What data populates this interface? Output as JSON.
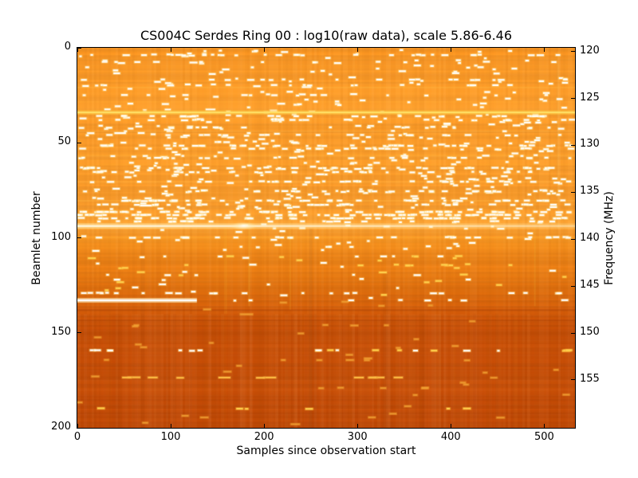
{
  "figure": {
    "title": "CS004C Serdes Ring 00 : log10(raw data), scale 5.86-6.46",
    "xlabel": "Samples since observation start",
    "ylabel_left": "Beamlet number",
    "ylabel_right": "Frequency (MHz)",
    "background": "#ffffff",
    "text_color": "#000000"
  },
  "chart_data": {
    "type": "heatmap",
    "title": "CS004C Serdes Ring 00 : log10(raw data), scale 5.86-6.46",
    "xlabel": "Samples since observation start",
    "ylabel": "Beamlet number",
    "ylabel_right": "Frequency (MHz)",
    "station": "CS004C",
    "ring": "00",
    "scale_min": 5.86,
    "scale_max": 6.46,
    "x_range": [
      0,
      533
    ],
    "y_range": [
      0,
      200
    ],
    "y_inverted": true,
    "xticks": [
      0,
      100,
      200,
      300,
      400,
      500
    ],
    "yticks": [
      0,
      50,
      100,
      150,
      200
    ],
    "right_ticks": [
      120,
      125,
      130,
      135,
      140,
      145,
      150,
      155
    ],
    "freq_top_mhz": 119.6,
    "freq_bottom_mhz": 160.1,
    "grid": false,
    "colormap": "hot-orange",
    "bg_stops": [
      {
        "b": 0,
        "c": "#F79320"
      },
      {
        "b": 6,
        "c": "#FA9826"
      },
      {
        "b": 20,
        "c": "#FA9A28"
      },
      {
        "b": 33,
        "c": "#FC9F2E"
      },
      {
        "b": 40,
        "c": "#FA9A28"
      },
      {
        "b": 55,
        "c": "#FB9D2B"
      },
      {
        "b": 70,
        "c": "#FA9B2A"
      },
      {
        "b": 85,
        "c": "#FA9C2C"
      },
      {
        "b": 93,
        "c": "#FDA535"
      },
      {
        "b": 97,
        "c": "#F89A2B"
      },
      {
        "b": 102,
        "c": "#F5921F"
      },
      {
        "b": 110,
        "c": "#EF8518"
      },
      {
        "b": 120,
        "c": "#E77A12"
      },
      {
        "b": 130,
        "c": "#DE6C0E"
      },
      {
        "b": 137,
        "c": "#D5600C"
      },
      {
        "b": 143,
        "c": "#CB5409"
      },
      {
        "b": 149,
        "c": "#C64F08"
      },
      {
        "b": 155,
        "c": "#C95109"
      },
      {
        "b": 162,
        "c": "#C74F09"
      },
      {
        "b": 170,
        "c": "#C54E08"
      },
      {
        "b": 178,
        "c": "#C8500A"
      },
      {
        "b": 186,
        "c": "#C44C08"
      },
      {
        "b": 194,
        "c": "#C24B08"
      },
      {
        "b": 200,
        "c": "#BF4907"
      }
    ],
    "lines": [
      {
        "b": 21,
        "c": "#FFBE4E",
        "t": 1.6,
        "a": 0.35
      },
      {
        "b": 34,
        "c": "#FFE066",
        "t": 2.3,
        "a": 1,
        "gc": "#FFC33C",
        "gt": 6,
        "ga": 0.5
      },
      {
        "b": 44,
        "c": "#FFBE4E",
        "t": 1.5,
        "a": 0.3
      },
      {
        "b": 57,
        "c": "#FFBE4E",
        "t": 1.5,
        "a": 0.28
      },
      {
        "b": 70.5,
        "c": "#FFBE4E",
        "t": 1.4,
        "a": 0.25
      },
      {
        "b": 80.5,
        "c": "#FFC44F",
        "t": 1.6,
        "a": 0.3
      },
      {
        "b": 93.8,
        "c": "#FFF6DC",
        "t": 2.4,
        "a": 1,
        "gc": "#FFE9A8",
        "gt": 7,
        "ga": 0.55,
        "fade": 0.4,
        "blob": {
          "s": 178,
          "r": 17
        }
      },
      {
        "b": 99.8,
        "c": "#FFB840",
        "t": 1.4,
        "a": 0.3
      },
      {
        "b": 132.9,
        "c": "#FFFFFF",
        "t": 2.6,
        "a": 1,
        "gc": "#FFE9B0",
        "gt": 6,
        "ga": 0.6,
        "s0": 0,
        "s1": 128
      },
      {
        "b": 138,
        "c": "#A63F06",
        "t": 1.8,
        "a": 0.38
      },
      {
        "b": 143.5,
        "c": "#A63F06",
        "t": 1.6,
        "a": 0.3
      },
      {
        "b": 155.5,
        "c": "#B24405",
        "t": 1.5,
        "a": 0.25
      }
    ],
    "dash_rows": [
      {
        "b": 3.8,
        "n": 28
      },
      {
        "b": 7.5,
        "n": 12
      },
      {
        "b": 16.8,
        "n": 20
      },
      {
        "b": 19.7,
        "n": 16
      },
      {
        "b": 25,
        "n": 14
      },
      {
        "b": 36,
        "n": 30
      },
      {
        "b": 38,
        "n": 20
      },
      {
        "b": 42,
        "n": 18
      },
      {
        "b": 46,
        "n": 22
      },
      {
        "b": 51.5,
        "n": 40
      },
      {
        "b": 53,
        "n": 25
      },
      {
        "b": 58,
        "n": 25
      },
      {
        "b": 63.3,
        "n": 35
      },
      {
        "b": 65.4,
        "n": 30
      },
      {
        "b": 70.4,
        "n": 30
      },
      {
        "b": 75.5,
        "n": 28
      },
      {
        "b": 80.5,
        "n": 40
      },
      {
        "b": 82.6,
        "n": 35
      },
      {
        "b": 86.4,
        "n": 65
      },
      {
        "b": 88,
        "n": 70
      },
      {
        "b": 89.7,
        "n": 60
      },
      {
        "b": 91.4,
        "n": 25
      },
      {
        "b": 99.8,
        "n": 26
      },
      {
        "b": 109.8,
        "n": 10,
        "k": "mix"
      },
      {
        "b": 114.4,
        "n": 8,
        "k": "yellow"
      },
      {
        "b": 119.5,
        "n": 6,
        "k": "mix"
      },
      {
        "b": 129.1,
        "n": 22
      },
      {
        "b": 132.9,
        "n": 8,
        "s0": 150
      },
      {
        "b": 146,
        "n": 4,
        "k": "dim"
      },
      {
        "b": 159.3,
        "n": 20,
        "k": "mix"
      },
      {
        "b": 164.4,
        "n": 6,
        "k": "dim"
      },
      {
        "b": 173.6,
        "n": 12,
        "k": "yellowlong"
      },
      {
        "b": 179,
        "n": 5,
        "k": "dim"
      },
      {
        "b": 189.9,
        "n": 6,
        "k": "yellow"
      },
      {
        "b": 194.5,
        "n": 3,
        "k": "dim"
      }
    ],
    "speckle_bands": [
      {
        "b0": 1,
        "b1": 34,
        "n": 120
      },
      {
        "b0": 35,
        "b1": 60,
        "n": 150
      },
      {
        "b0": 60,
        "b1": 86,
        "n": 190
      },
      {
        "b0": 91,
        "b1": 107,
        "n": 45
      },
      {
        "b0": 108,
        "b1": 132,
        "n": 40,
        "k": "mix"
      },
      {
        "b0": 133,
        "b1": 158,
        "n": 16,
        "k": "dim"
      },
      {
        "b0": 159,
        "b1": 199,
        "n": 18,
        "k": "dim"
      }
    ],
    "streaks": [
      {
        "s": 159,
        "b0": 95,
        "b1": 140,
        "c": "#FFC840",
        "a": 0.12,
        "w": 4
      },
      {
        "s": 184,
        "b0": 25,
        "b1": 136,
        "c": "#FFD34D",
        "a": 0.2,
        "w": 2
      },
      {
        "s": 228,
        "b0": 55,
        "b1": 138,
        "c": "#FFCC44",
        "a": 0.15,
        "w": 2
      },
      {
        "s": 490,
        "b0": 75,
        "b1": 136,
        "c": "#FFD04A",
        "a": 0.15,
        "w": 2
      },
      {
        "s": 515,
        "b0": 2,
        "b1": 95,
        "c": "#FFE080",
        "a": 0.12,
        "w": 3
      },
      {
        "s": 70,
        "b0": 100,
        "b1": 200,
        "c": "#7A3303",
        "a": 0.08,
        "w": 5
      },
      {
        "s": 250,
        "b0": 95,
        "b1": 200,
        "c": "#7A3303",
        "a": 0.1,
        "w": 4
      },
      {
        "s": 330,
        "b0": 118,
        "b1": 200,
        "c": "#7A3303",
        "a": 0.08,
        "w": 6
      }
    ],
    "speckle_colors": {
      "white_core": "#FFFFFF",
      "white_fringe": "#FFD873",
      "yellow_core": "#FFD24E",
      "yellow_fringe": "#F8A830",
      "dim_core": "#F0A035"
    }
  }
}
